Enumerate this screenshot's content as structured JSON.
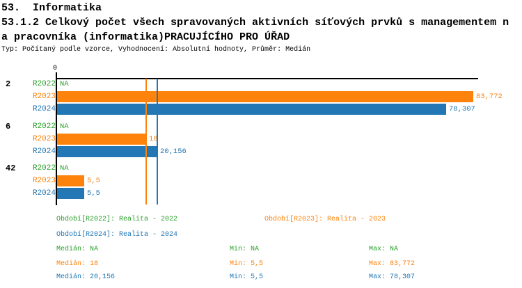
{
  "header": {
    "title": "53.  Informatika",
    "subtitle_line1": "53.1.2 Celkový počet všech spravovaných aktivních síťových prvků s managementem n",
    "subtitle_line2": "a pracovníka (informatika)PRACUJÍCÍHO PRO ÚŘAD",
    "meta_line": "Typ: Počítaný podle vzorce, Vyhodnocení: Absolutní hodnoty, Průměr: Medián"
  },
  "chart_data": {
    "type": "bar",
    "orientation": "horizontal",
    "x_axis": {
      "zero_label": "0",
      "max_value": 83.772,
      "gridlines": false
    },
    "series_colors": {
      "R2022": "#2CA02C",
      "R2023": "#FD830D",
      "R2024": "#2277B4"
    },
    "groups": [
      {
        "label": "2",
        "rows": [
          {
            "series": "R2022",
            "value": null,
            "display": "NA"
          },
          {
            "series": "R2023",
            "value": 83.772,
            "display": "83,772"
          },
          {
            "series": "R2024",
            "value": 78.307,
            "display": "78,307"
          }
        ]
      },
      {
        "label": "6",
        "rows": [
          {
            "series": "R2022",
            "value": null,
            "display": "NA"
          },
          {
            "series": "R2023",
            "value": 18,
            "display": "18"
          },
          {
            "series": "R2024",
            "value": 20.156,
            "display": "20,156"
          }
        ]
      },
      {
        "label": "42",
        "rows": [
          {
            "series": "R2022",
            "value": null,
            "display": "NA"
          },
          {
            "series": "R2023",
            "value": 5.5,
            "display": "5,5"
          },
          {
            "series": "R2024",
            "value": 5.5,
            "display": "5,5"
          }
        ]
      }
    ],
    "median_lines": [
      {
        "series": "R2023",
        "value": 18
      },
      {
        "series": "R2024",
        "value": 20.156
      }
    ]
  },
  "legend": {
    "periods": [
      {
        "key": "R2022",
        "label": "Období[R2022]: Realita - 2022"
      },
      {
        "key": "R2023",
        "label": "Období[R2023]: Realita - 2023"
      },
      {
        "key": "R2024",
        "label": "Období[R2024]: Realita - 2024"
      }
    ],
    "stats": [
      {
        "series": "R2022",
        "median": "Medián: NA",
        "min": "Min: NA",
        "max": "Max: NA"
      },
      {
        "series": "R2023",
        "median": "Medián: 18",
        "min": "Min: 5,5",
        "max": "Max: 83,772"
      },
      {
        "series": "R2024",
        "median": "Medián: 20,156",
        "min": "Min: 5,5",
        "max": "Max: 78,307"
      }
    ]
  }
}
